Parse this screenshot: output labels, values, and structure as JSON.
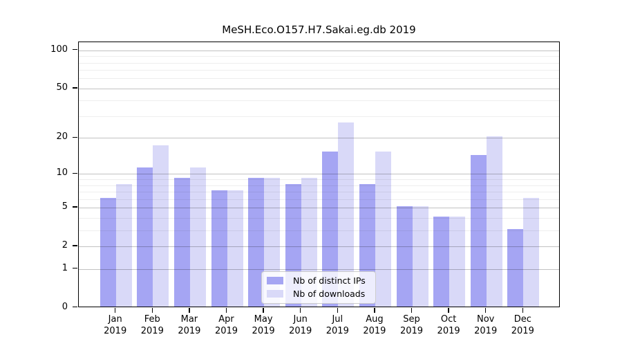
{
  "figure": {
    "title": "MeSH.Eco.O157.H7.Sakai.eg.db 2019"
  },
  "chart_data": {
    "type": "bar",
    "title": "MeSH.Eco.O157.H7.Sakai.eg.db 2019",
    "categories": [
      "Jan",
      "Feb",
      "Mar",
      "Apr",
      "May",
      "Jun",
      "Jul",
      "Aug",
      "Sep",
      "Oct",
      "Nov",
      "Dec"
    ],
    "year_label": "2019",
    "series": [
      {
        "name": "Nb of distinct IPs",
        "color": "#a5a5f3",
        "values": [
          6,
          11,
          9,
          7,
          9,
          8,
          15,
          8,
          5,
          4,
          14,
          3
        ]
      },
      {
        "name": "Nb of downloads",
        "color": "#d9d9f8",
        "values": [
          8,
          17,
          11,
          7,
          9,
          9,
          26,
          15,
          5,
          4,
          20,
          6
        ]
      }
    ],
    "y_axis": {
      "scale": "log1p",
      "tick_values": [
        0,
        1,
        2,
        5,
        10,
        20,
        50,
        100
      ],
      "tick_labels": [
        "0",
        "1",
        "2",
        "5",
        "10",
        "20",
        "50",
        "100"
      ],
      "minor_gridline_values": [
        3,
        4,
        6,
        7,
        8,
        9,
        30,
        40,
        60,
        70,
        80,
        90
      ],
      "ylim": [
        0,
        116
      ]
    },
    "legend": {
      "position": "inside-bottom-center",
      "entries": [
        "Nb of distinct IPs",
        "Nb of downloads"
      ]
    },
    "grid": true,
    "xlabel": "",
    "ylabel": ""
  }
}
